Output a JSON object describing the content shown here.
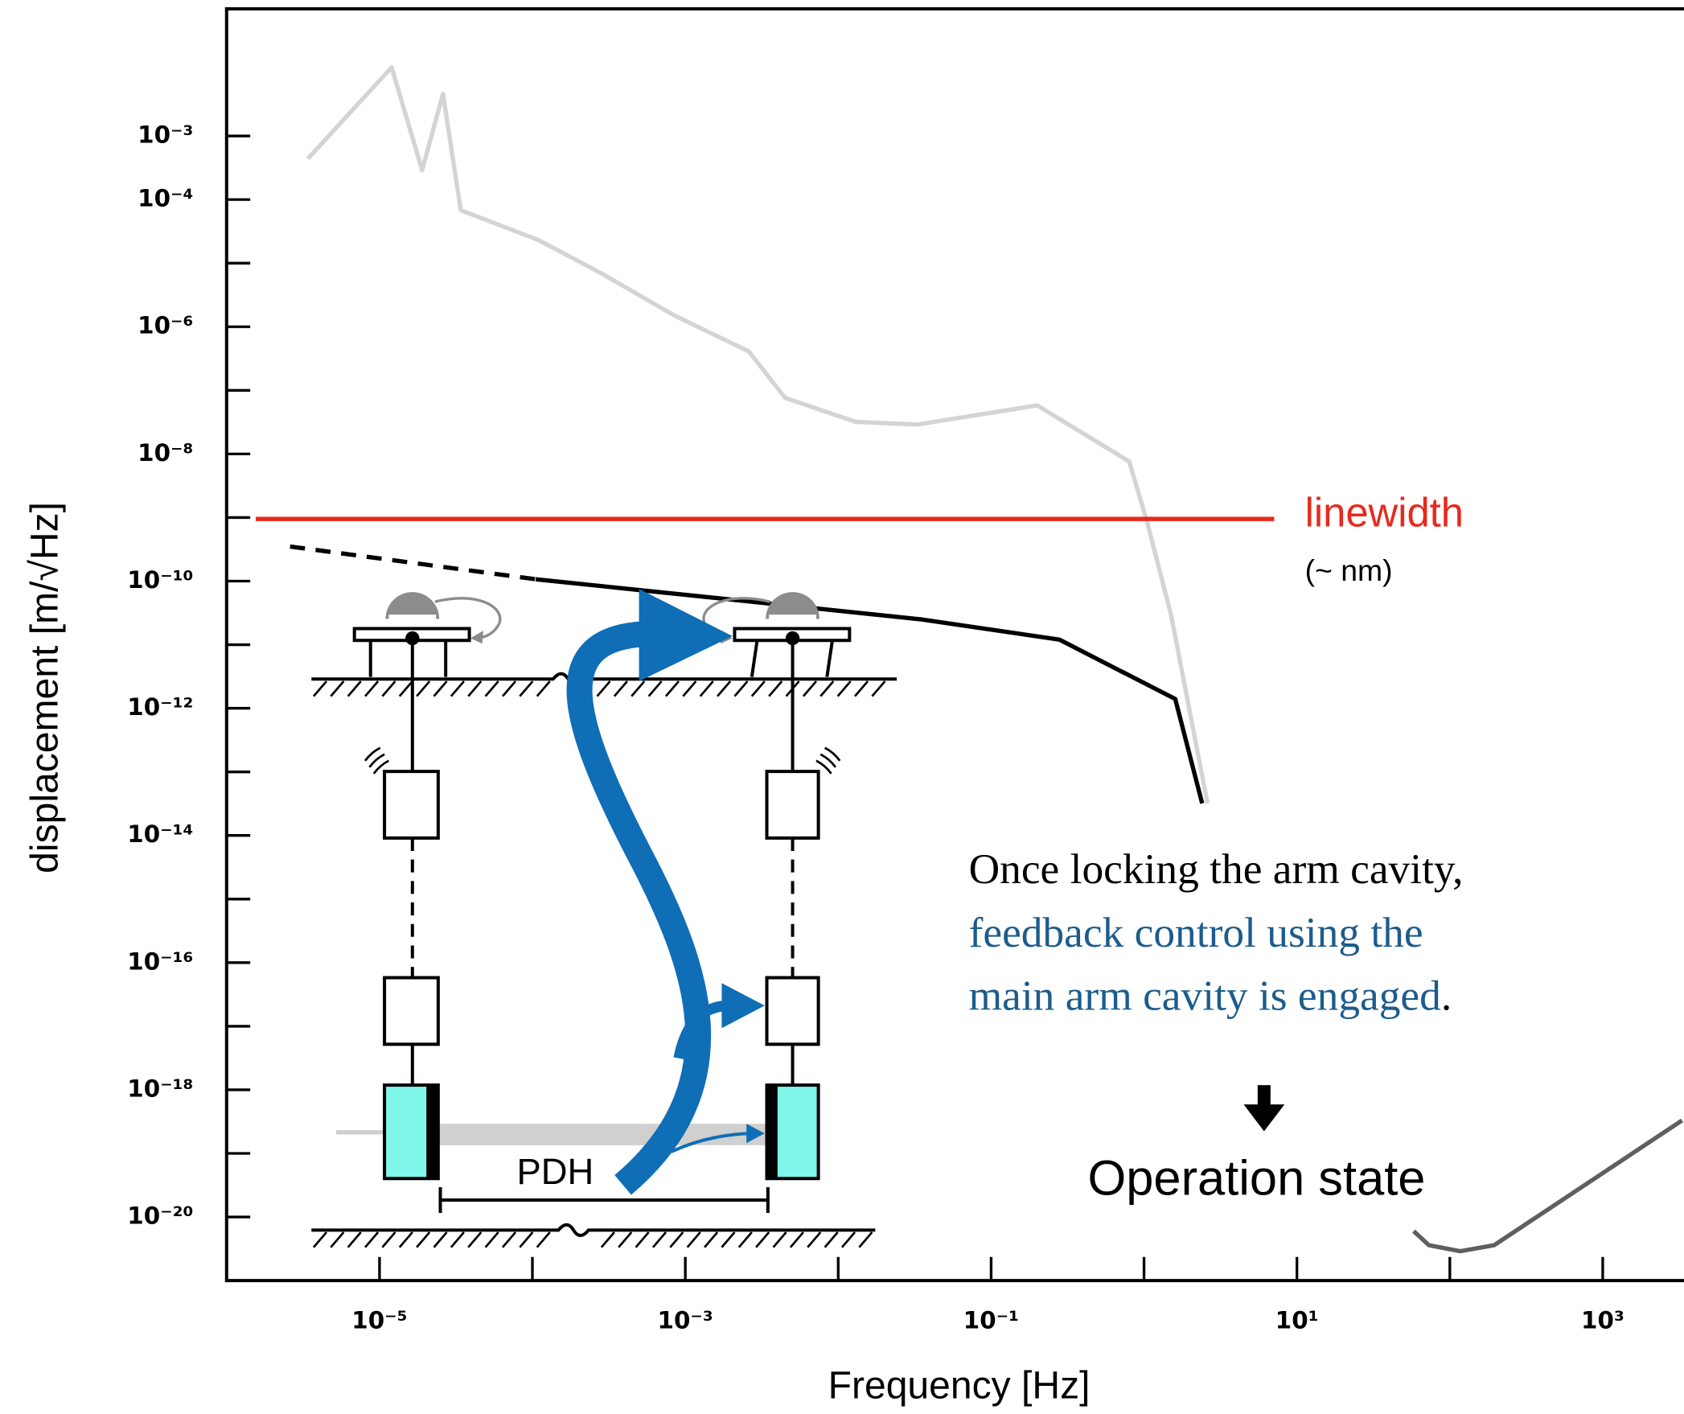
{
  "chart_data": {
    "type": "line",
    "xscale": "log",
    "yscale": "log",
    "xlabel": "Frequency [Hz]",
    "ylabel": "displacement [m/√Hz]",
    "xlim": [
      1e-06,
      3400
    ],
    "ylim": [
      1e-21,
      0.1
    ],
    "xticks": [
      {
        "value": 1e-05,
        "label": "10⁻⁵"
      },
      {
        "value": 0.001,
        "label": "10⁻³"
      },
      {
        "value": 0.1,
        "label": "10⁻¹"
      },
      {
        "value": 10,
        "label": "10¹"
      },
      {
        "value": 1000,
        "label": "10³"
      }
    ],
    "xminorticks": [
      0.0001,
      0.01,
      1,
      100
    ],
    "yticks": [
      {
        "value": 0.001,
        "label": "10⁻³"
      },
      {
        "value": 0.0001,
        "label": "10⁻⁴"
      },
      {
        "value": 1e-06,
        "label": "10⁻⁶"
      },
      {
        "value": 1e-08,
        "label": "10⁻⁸"
      },
      {
        "value": 1e-10,
        "label": "10⁻¹⁰"
      },
      {
        "value": 1e-12,
        "label": "10⁻¹²"
      },
      {
        "value": 1e-14,
        "label": "10⁻¹⁴"
      },
      {
        "value": 1e-16,
        "label": "10⁻¹⁶"
      },
      {
        "value": 1e-18,
        "label": "10⁻¹⁸"
      },
      {
        "value": 1e-20,
        "label": "10⁻²⁰"
      }
    ],
    "yminorticks": [
      1e-05,
      1e-07,
      1e-09,
      1e-11,
      1e-13,
      1e-15,
      1e-17,
      1e-19
    ],
    "series": [
      {
        "color": "#d4d4d4",
        "x": [
          3.4e-06,
          1.2e-05,
          1.9e-05,
          2.6e-05,
          3.4e-05,
          0.00011,
          0.00028,
          0.00085,
          0.0026,
          0.0045,
          0.013,
          0.033,
          0.2,
          0.8,
          1.05,
          1.5,
          2.6
        ],
        "values": [
          0.00044,
          0.012,
          0.00029,
          0.0046,
          6.8e-05,
          2.3e-05,
          7e-06,
          1.5e-06,
          4.1e-07,
          7.6e-08,
          3.2e-08,
          2.9e-08,
          5.8e-08,
          7.6e-09,
          8.3e-10,
          3e-11,
          3.2e-14
        ]
      },
      {
        "color": "#000000",
        "dash": true,
        "x": [
          2.6e-06,
          0.000105
        ],
        "values": [
          3.5e-10,
          1.07e-10
        ]
      },
      {
        "color": "#000000",
        "x": [
          0.000105,
          0.035,
          0.28,
          1.6,
          2.4
        ],
        "values": [
          1.07e-10,
          2.5e-11,
          1.2e-11,
          1.4e-12,
          3.2e-14
        ]
      },
      {
        "color": "#5f5f5f",
        "x": [
          58,
          73,
          117,
          195,
          3300
        ],
        "values": [
          6e-21,
          3.6e-21,
          2.9e-21,
          3.6e-21,
          3.3e-19
        ]
      },
      {
        "color": "#e8291c",
        "x": [
          1.55e-06,
          7.1
        ],
        "values": [
          9.5e-10,
          9.5e-10
        ]
      }
    ],
    "annotations": {
      "linewidth": "linewidth",
      "linewidth_note": "(~ nm)",
      "note_line1": "Once locking the arm cavity,",
      "note_line2": "feedback control using the",
      "note_line3": "main arm cavity is engaged",
      "note_end": ".",
      "result": "Operation state",
      "pdh": "PDH"
    }
  }
}
